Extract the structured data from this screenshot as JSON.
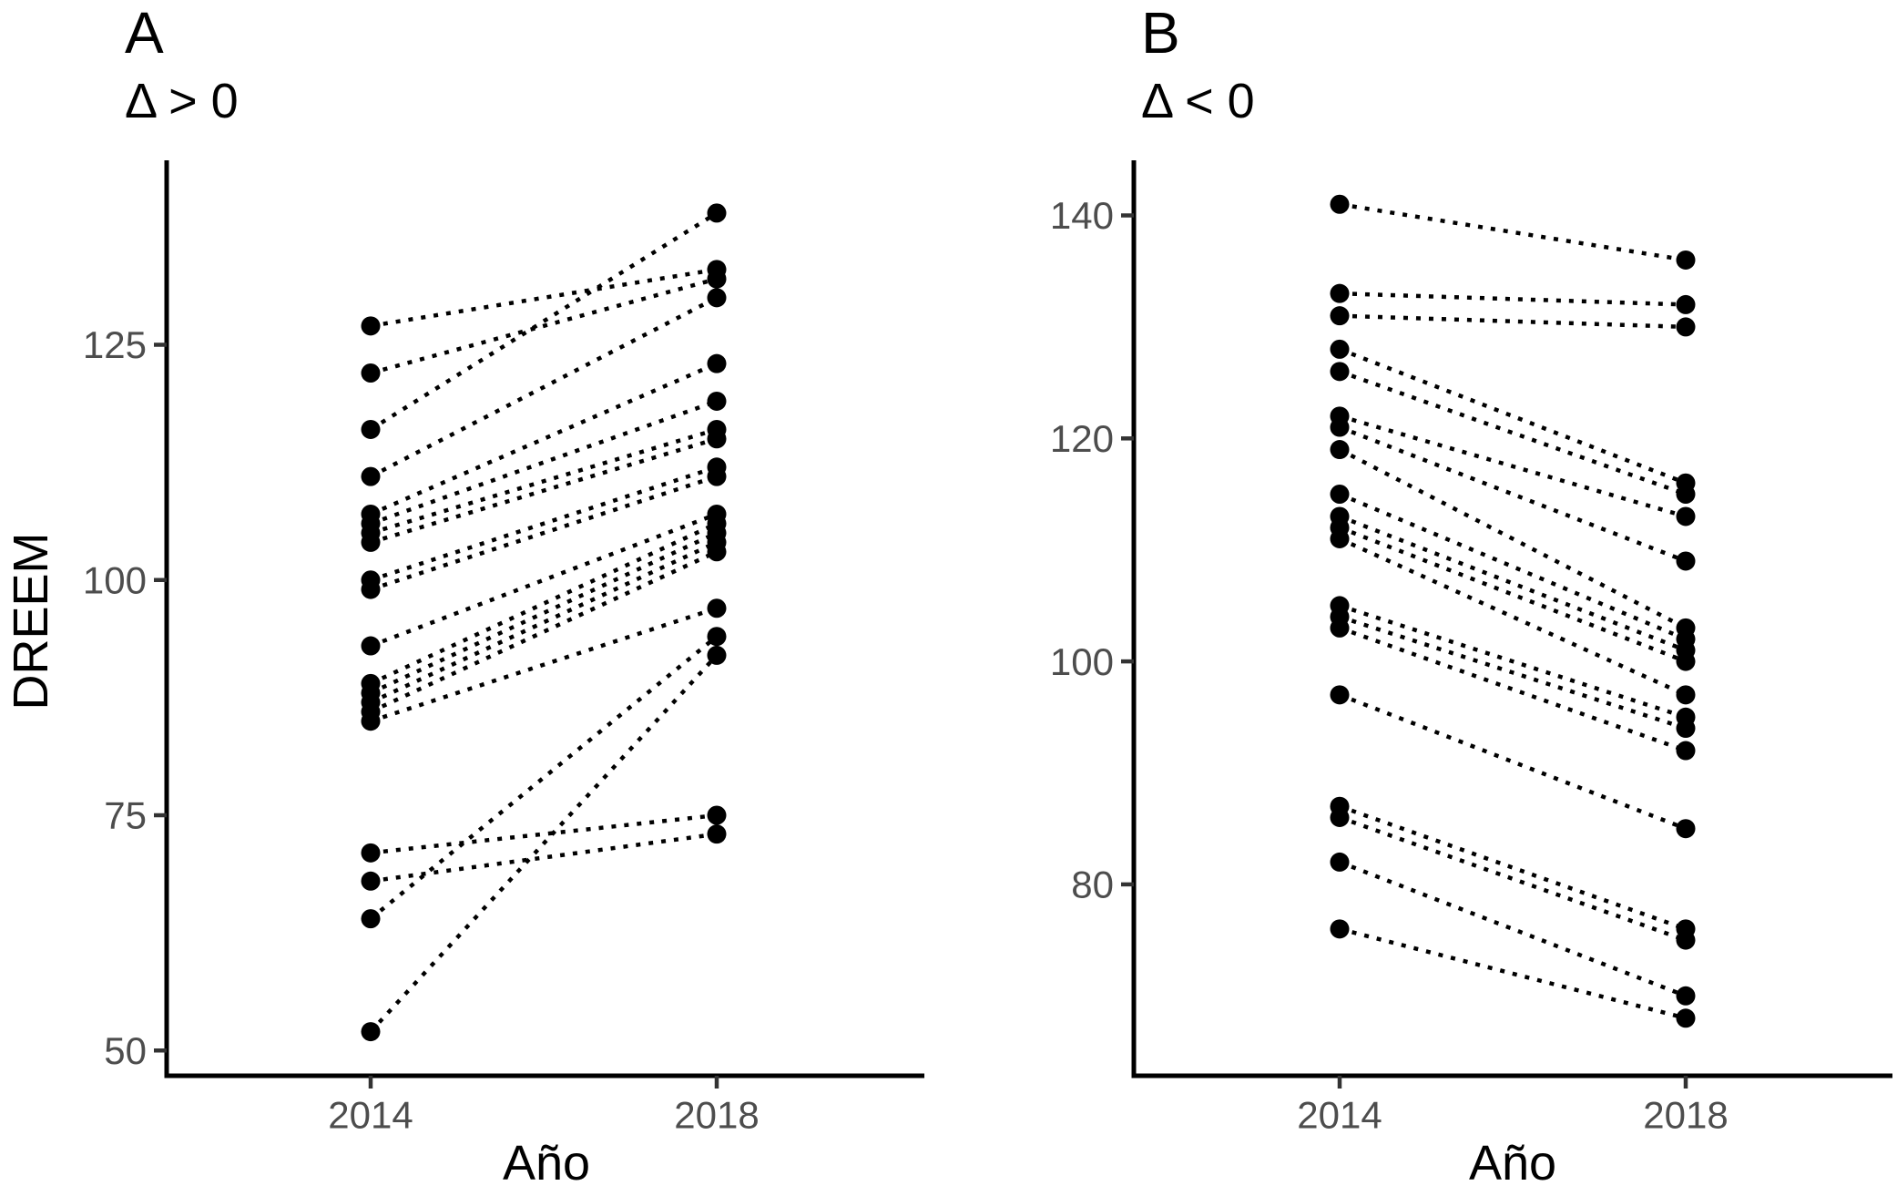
{
  "figure": {
    "background": "#ffffff",
    "colors": {
      "point": "#000000",
      "connector_line": "#000000",
      "axis_line": "#000000",
      "tick_mark": "#333333",
      "tick_label": "#4d4d4d",
      "text": "#000000"
    }
  },
  "chart_data": [
    {
      "type": "line",
      "chart_kind": "paired-slopegraph-dotted",
      "tag": "A",
      "subtitle": "Δ > 0",
      "xlabel": "Año",
      "ylabel": "DREEM",
      "categories": [
        "2014",
        "2018"
      ],
      "yticks": [
        125,
        100,
        75,
        50
      ],
      "ylim": [
        47,
        145
      ],
      "grid": "off",
      "legend": "none",
      "pairs": [
        [
          127,
          133
        ],
        [
          122,
          132
        ],
        [
          116,
          139
        ],
        [
          111,
          130
        ],
        [
          107,
          123
        ],
        [
          106,
          119
        ],
        [
          105,
          116
        ],
        [
          104,
          115
        ],
        [
          100,
          112
        ],
        [
          99,
          111
        ],
        [
          93,
          107
        ],
        [
          89,
          106
        ],
        [
          88,
          105
        ],
        [
          87,
          104
        ],
        [
          86,
          103
        ],
        [
          85,
          97
        ],
        [
          71,
          75
        ],
        [
          68,
          73
        ],
        [
          64,
          94
        ],
        [
          52,
          92
        ]
      ]
    },
    {
      "type": "line",
      "chart_kind": "paired-slopegraph-dotted",
      "tag": "B",
      "subtitle": "Δ < 0",
      "xlabel": "Año",
      "ylabel": "DREEM",
      "categories": [
        "2014",
        "2018"
      ],
      "yticks": [
        140,
        120,
        100,
        80
      ],
      "ylim": [
        63,
        145
      ],
      "grid": "off",
      "legend": "none",
      "pairs": [
        [
          141,
          136
        ],
        [
          133,
          132
        ],
        [
          131,
          130
        ],
        [
          128,
          116
        ],
        [
          126,
          115
        ],
        [
          122,
          113
        ],
        [
          121,
          109
        ],
        [
          119,
          103
        ],
        [
          115,
          102
        ],
        [
          113,
          101
        ],
        [
          112,
          100
        ],
        [
          111,
          97
        ],
        [
          105,
          95
        ],
        [
          104,
          94
        ],
        [
          103,
          92
        ],
        [
          97,
          85
        ],
        [
          87,
          76
        ],
        [
          86,
          75
        ],
        [
          82,
          70
        ],
        [
          76,
          68
        ]
      ]
    }
  ]
}
